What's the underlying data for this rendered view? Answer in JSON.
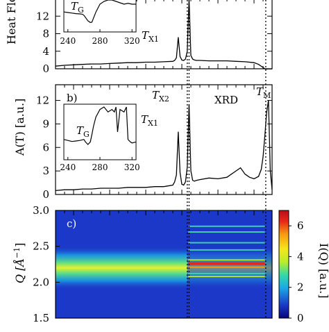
{
  "chart_data": [
    {
      "panel": "a",
      "type": "line",
      "ylabel": "Heat Flow",
      "yticks": [
        "0",
        "4",
        "8",
        "12"
      ],
      "ylim": [
        0,
        16
      ],
      "xlim": [
        220,
        460
      ],
      "series": [
        {
          "x": [
            220,
            230,
            240,
            250,
            260,
            270,
            280,
            290,
            300,
            310,
            320,
            330,
            340,
            350,
            352,
            354,
            356,
            358,
            360,
            362,
            364,
            366,
            368,
            370,
            372,
            374,
            376,
            380,
            390,
            400,
            410,
            420,
            430,
            440,
            445,
            450,
            452,
            455,
            460
          ],
          "y": [
            0.6,
            0.8,
            0.9,
            1.0,
            1.1,
            1.1,
            1.2,
            1.3,
            1.4,
            1.4,
            1.5,
            1.5,
            1.6,
            1.7,
            1.9,
            2.5,
            7.2,
            2.8,
            2.0,
            1.9,
            2.2,
            4.0,
            16.0,
            3.0,
            2.2,
            2.0,
            1.9,
            1.9,
            1.8,
            1.8,
            1.8,
            1.7,
            1.6,
            1.4,
            1.0,
            0.3,
            0.0,
            -0.2,
            -0.2
          ]
        }
      ],
      "inset": {
        "label": "T",
        "label_sub": "G",
        "xticks": [
          "240",
          "280",
          "320"
        ],
        "xlim": [
          235,
          325
        ],
        "x": [
          235,
          240,
          245,
          250,
          255,
          258,
          260,
          262,
          265,
          268,
          270,
          275,
          280,
          285,
          290,
          295,
          300,
          305,
          310,
          315,
          320,
          325
        ],
        "y": [
          0.62,
          0.6,
          0.58,
          0.56,
          0.55,
          0.54,
          0.5,
          0.42,
          0.3,
          0.24,
          0.25,
          0.62,
          0.9,
          1.0,
          1.05,
          1.05,
          1.0,
          0.95,
          0.9,
          0.93,
          0.9,
          0.9
        ]
      },
      "annotations": [
        {
          "text": "T",
          "sub": "X1"
        }
      ]
    },
    {
      "panel": "b",
      "type": "line",
      "panel_label": "b)",
      "ylabel": "A(T) [a.u.]",
      "yticks": [
        "0",
        "3",
        "6",
        "9",
        "12"
      ],
      "ylim": [
        0,
        14
      ],
      "xlim": [
        220,
        460
      ],
      "series": [
        {
          "x": [
            220,
            230,
            240,
            250,
            260,
            270,
            280,
            290,
            300,
            310,
            320,
            330,
            340,
            350,
            352,
            354,
            356,
            358,
            360,
            362,
            364,
            366,
            368,
            370,
            372,
            374,
            376,
            380,
            390,
            400,
            410,
            420,
            425,
            430,
            435,
            440,
            445,
            448,
            450,
            452,
            454,
            456,
            458,
            460
          ],
          "y": [
            0.5,
            0.6,
            0.6,
            0.7,
            0.7,
            0.8,
            0.8,
            0.8,
            0.9,
            0.9,
            0.9,
            1.0,
            1.0,
            1.2,
            1.6,
            2.5,
            8.0,
            2.8,
            1.3,
            1.2,
            1.6,
            3.5,
            11.5,
            3.0,
            1.8,
            1.7,
            1.8,
            1.9,
            2.1,
            2.0,
            2.2,
            3.0,
            3.4,
            2.6,
            2.2,
            2.0,
            2.3,
            3.2,
            4.8,
            7.5,
            10.5,
            12.0,
            3.0,
            0.6
          ]
        }
      ],
      "inset": {
        "label": "T",
        "label_sub": "G",
        "xticks": [
          "240",
          "280",
          "320"
        ],
        "xlim": [
          235,
          325
        ],
        "x": [
          235,
          240,
          245,
          250,
          255,
          260,
          262,
          265,
          268,
          270,
          272,
          275,
          280,
          285,
          290,
          295,
          298,
          300,
          302,
          305,
          310,
          313,
          315,
          318,
          320,
          325
        ],
        "y": [
          0.35,
          0.33,
          0.31,
          0.32,
          0.33,
          0.35,
          0.3,
          0.25,
          0.3,
          0.45,
          0.62,
          0.8,
          0.95,
          1.0,
          0.9,
          0.95,
          0.9,
          1.0,
          0.5,
          0.95,
          0.9,
          1.0,
          0.35,
          0.3,
          0.28,
          0.3
        ]
      },
      "annotations": [
        {
          "text": "T",
          "sub": "X2"
        },
        {
          "text": "T",
          "sub": "X1"
        },
        {
          "text": "XRD"
        },
        {
          "text": "T",
          "sub": "M"
        }
      ]
    },
    {
      "panel": "c",
      "type": "heatmap",
      "panel_label": "c)",
      "ylabel": "Q [Å",
      "ylabel_sup": "−1",
      "ylabel_end": "]",
      "yticks": [
        "1.5",
        "2.0",
        "2.5",
        "3.0"
      ],
      "ylim": [
        1.5,
        3.0
      ],
      "xlim": [
        220,
        460
      ],
      "colorbar": {
        "label": "I(Q) [a.u.]",
        "ticks": [
          "0",
          "2",
          "4",
          "6"
        ],
        "range": [
          0,
          7
        ],
        "colors": [
          "#06067a",
          "#1c38c8",
          "#1aa8e6",
          "#33d9a8",
          "#b8ec2a",
          "#f4e818",
          "#f79a10",
          "#e8261a",
          "#b80e1a"
        ]
      },
      "amorphous_band": {
        "center": 2.2,
        "width": 0.2,
        "peak": 3.4
      },
      "crystal_lines": [
        {
          "q": 2.26,
          "intensity": 6.2
        },
        {
          "q": 2.21,
          "intensity": 4.0
        },
        {
          "q": 2.31,
          "intensity": 2.5
        },
        {
          "q": 2.12,
          "intensity": 2.2
        },
        {
          "q": 2.08,
          "intensity": 2.6
        },
        {
          "q": 2.45,
          "intensity": 1.8
        },
        {
          "q": 2.55,
          "intensity": 1.6
        },
        {
          "q": 2.7,
          "intensity": 1.4
        },
        {
          "q": 2.78,
          "intensity": 1.3
        }
      ],
      "dotted_lines_at": [
        366,
        368,
        453
      ]
    }
  ]
}
